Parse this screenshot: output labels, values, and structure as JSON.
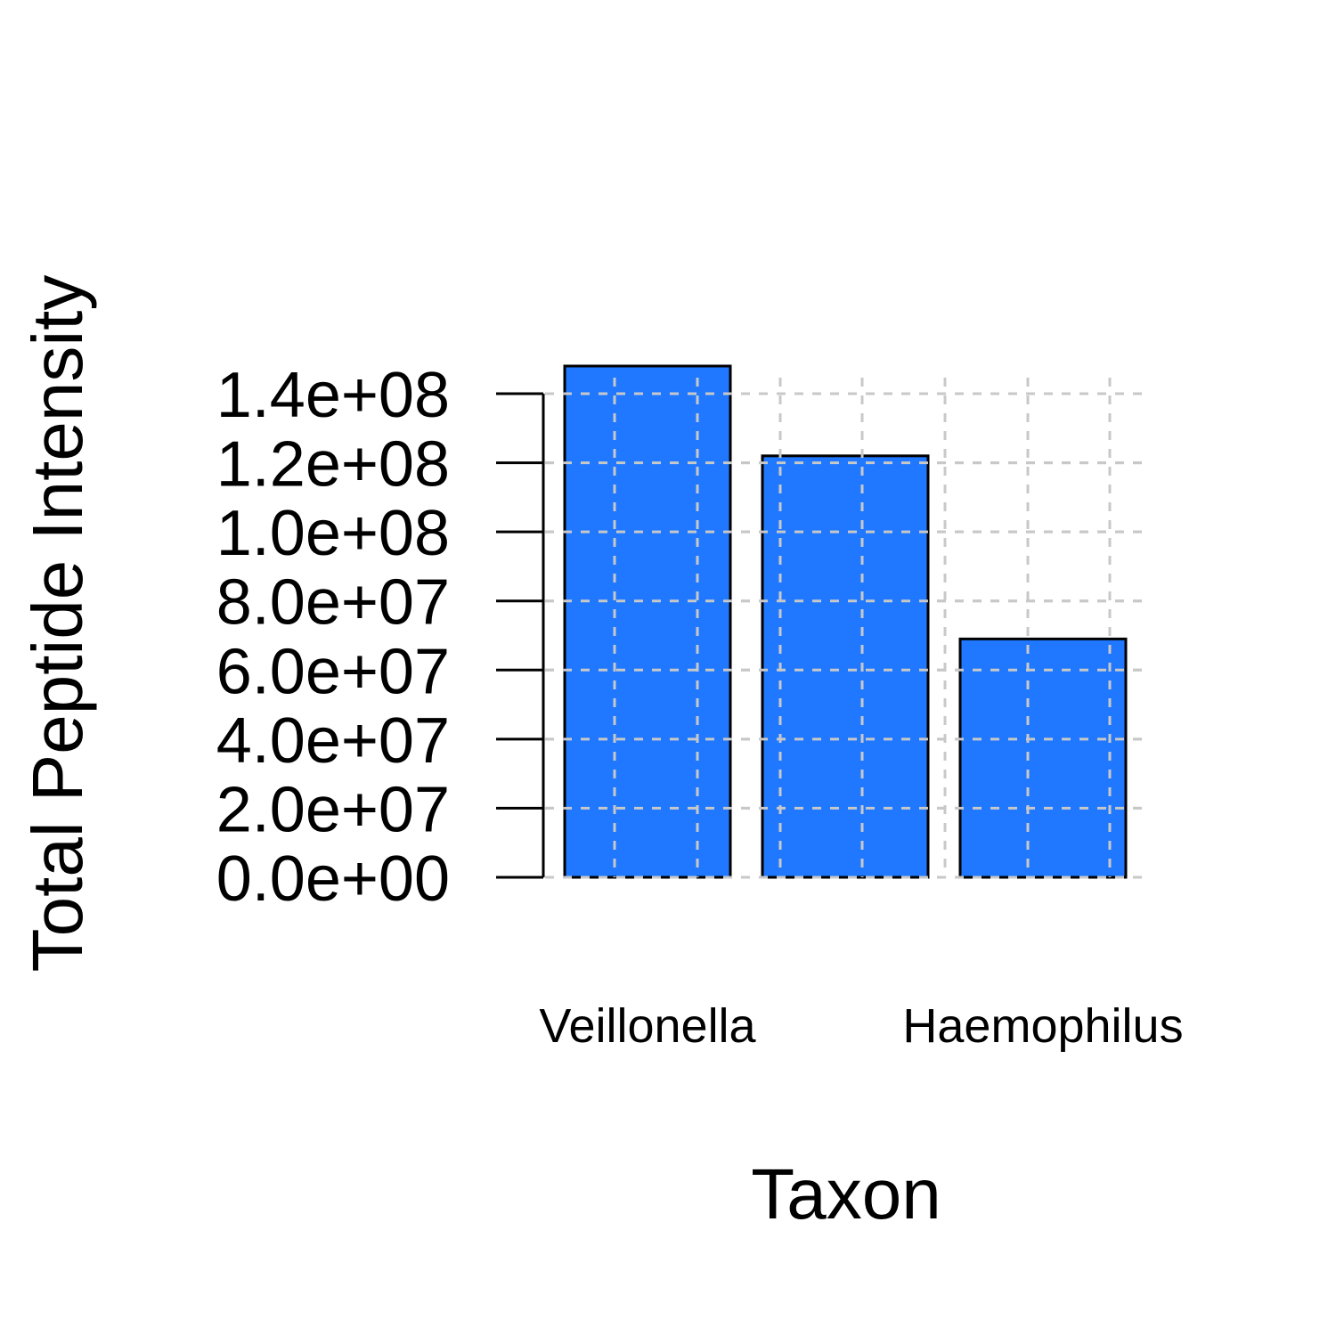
{
  "chart_data": {
    "type": "bar",
    "title": "",
    "xlabel": "Taxon",
    "ylabel": "Total Peptide Intensity",
    "categories": [
      "Veillonella",
      "",
      "Haemophilus"
    ],
    "values": [
      148000000,
      122000000,
      69000000
    ],
    "ylim": [
      0,
      140000000
    ],
    "yticks": [
      0,
      20000000,
      40000000,
      60000000,
      80000000,
      100000000,
      120000000,
      140000000
    ],
    "ytick_labels": [
      "0.0e+00",
      "2.0e+07",
      "4.0e+07",
      "6.0e+07",
      "8.0e+07",
      "1.0e+08",
      "1.2e+08",
      "1.4e+08"
    ],
    "grid": true,
    "legend": "none",
    "colors": {
      "bar": "#1f78ff",
      "grid": "#c8c8c8",
      "axis": "#000000"
    }
  }
}
